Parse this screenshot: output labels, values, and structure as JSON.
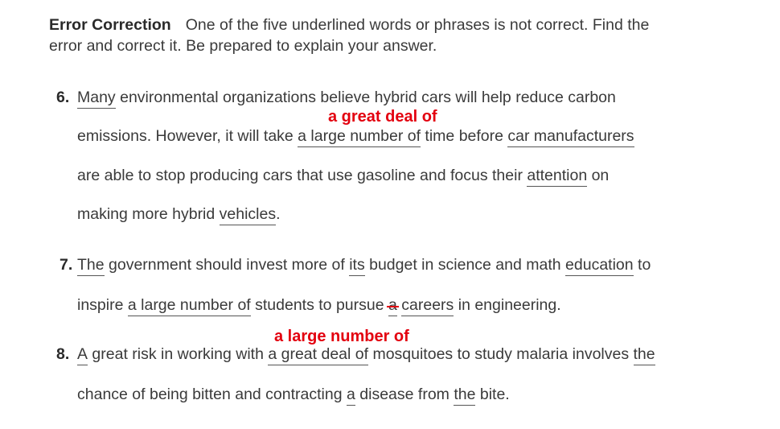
{
  "instructions": {
    "title": "Error Correction",
    "line1": "One of the five underlined words or phrases is not correct. Find the",
    "line2": "error and correct it. Be prepared to explain your answer."
  },
  "items": [
    {
      "number": "6.",
      "lines": [
        [
          "Many",
          " environmental organizations believe hybrid cars will help reduce carbon"
        ],
        [
          "emissions. However, it will take ",
          "a large number of",
          " time before ",
          "car manufacturers"
        ],
        [
          "are able to stop producing cars that use gasoline and focus their ",
          "attention",
          " on"
        ],
        [
          "making more hybrid ",
          "vehicles",
          "."
        ]
      ],
      "correction": "a great deal of"
    },
    {
      "number": "7.",
      "lines": [
        [
          "The",
          " government should invest more of ",
          "its",
          " budget in science and math ",
          "education",
          " to"
        ],
        [
          "inspire ",
          "a large number of",
          " students to pursue ",
          "a",
          " ",
          "careers",
          " in engineering."
        ]
      ]
    },
    {
      "number": "8.",
      "lines": [
        [
          "A",
          " great risk in working with ",
          "a great deal of",
          " mosquitoes to study malaria involves ",
          "the"
        ],
        [
          "chance of being bitten and contracting ",
          "a",
          " disease from ",
          "the",
          " bite."
        ]
      ],
      "correction": "a large number of"
    }
  ]
}
